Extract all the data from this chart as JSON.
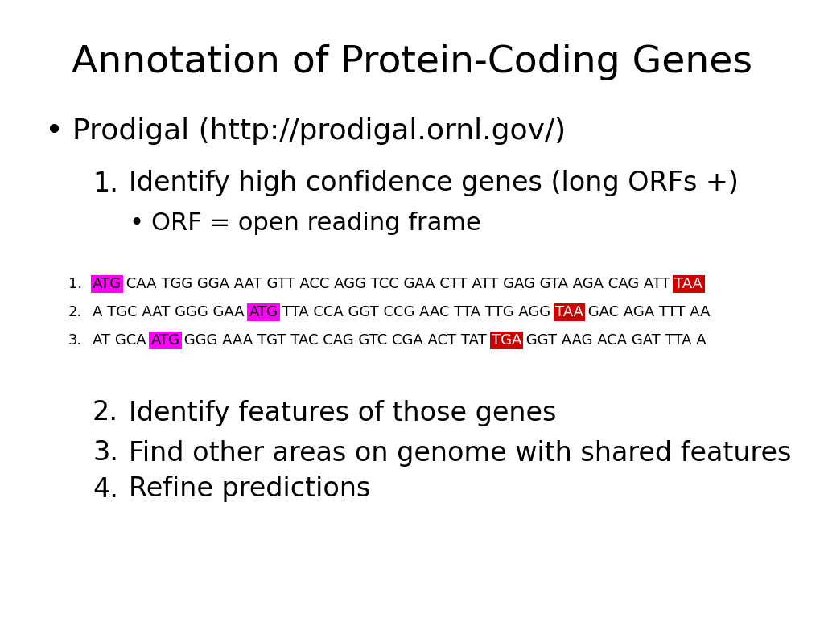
{
  "title": "Annotation of Protein-Coding Genes",
  "background_color": "#ffffff",
  "title_fontsize": 34,
  "bullet_main": "Prodigal (http://prodigal.ornl.gov/)",
  "bullet_main_fontsize": 26,
  "sub_items": [
    {
      "num": "1.",
      "text": "Identify high confidence genes (long ORFs +)",
      "indent": 1,
      "fontsize": 24
    },
    {
      "num": "•",
      "text": "ORF = open reading frame",
      "indent": 2,
      "fontsize": 22
    },
    {
      "num": "2.",
      "text": "Identify features of those genes",
      "indent": 1,
      "fontsize": 24
    },
    {
      "num": "3.",
      "text": "Find other areas on genome with shared features",
      "indent": 1,
      "fontsize": 24
    },
    {
      "num": "4.",
      "text": "Refine predictions",
      "indent": 1,
      "fontsize": 24
    }
  ],
  "seq_lines": [
    {
      "number": "1.",
      "segments": [
        {
          "text": "ATG",
          "bg": "#ff00ff",
          "color": "#000000"
        },
        {
          "text": " CAA TGG GGA AAT GTT ACC AGG TCC GAA CTT ATT GAG GTA AGA CAG ATT ",
          "bg": null,
          "color": "#000000"
        },
        {
          "text": "TAA",
          "bg": "#cc0000",
          "color": "#ffffff"
        }
      ]
    },
    {
      "number": "2.",
      "segments": [
        {
          "text": "A TGC AAT GGG GAA ",
          "bg": null,
          "color": "#000000"
        },
        {
          "text": "ATG",
          "bg": "#ff00ff",
          "color": "#000000"
        },
        {
          "text": " TTA CCA GGT CCG AAC TTA TTG AGG ",
          "bg": null,
          "color": "#000000"
        },
        {
          "text": "TAA",
          "bg": "#cc0000",
          "color": "#ffffff"
        },
        {
          "text": " GAC AGA TTT AA",
          "bg": null,
          "color": "#000000"
        }
      ]
    },
    {
      "number": "3.",
      "segments": [
        {
          "text": "AT GCA ",
          "bg": null,
          "color": "#000000"
        },
        {
          "text": "ATG",
          "bg": "#ff00ff",
          "color": "#000000"
        },
        {
          "text": " GGG AAA TGT TAC CAG GTC CGA ACT TAT ",
          "bg": null,
          "color": "#000000"
        },
        {
          "text": "TGA",
          "bg": "#cc0000",
          "color": "#ffffff"
        },
        {
          "text": " GGT AAG ACA GAT TTA A",
          "bg": null,
          "color": "#000000"
        }
      ]
    }
  ],
  "seq_fontsize": 13
}
